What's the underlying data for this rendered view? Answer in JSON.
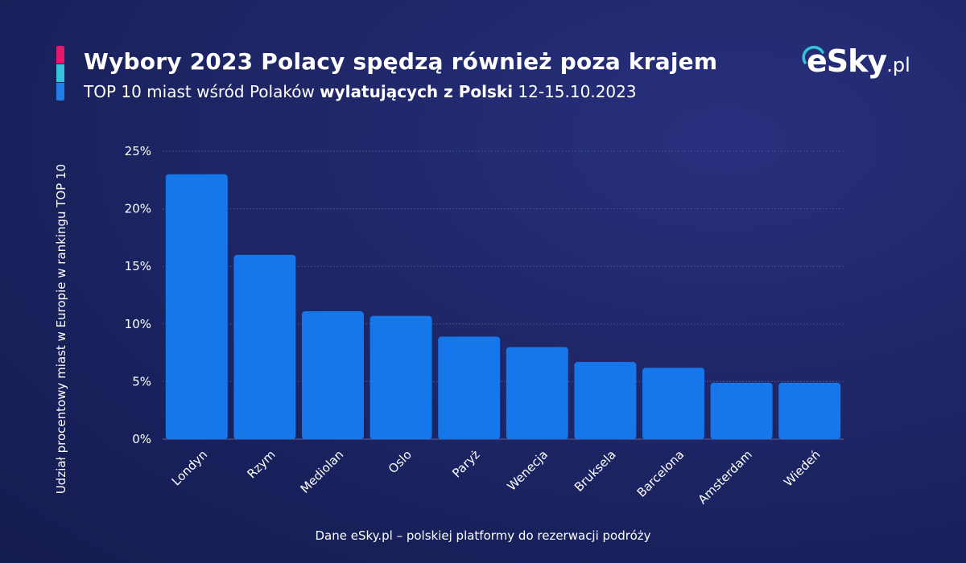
{
  "header": {
    "title": "Wybory 2023 Polacy spędzą również poza krajem",
    "subtitle_before": "TOP 10 miast wśród Polaków ",
    "subtitle_bold": "wylatujących z Polski",
    "subtitle_after": " 12-15.10.2023",
    "accent_colors": [
      "#e5186d",
      "#35c3dc",
      "#1f7ee8"
    ]
  },
  "logo": {
    "e": "e",
    "sky": "Sky",
    "domain": ".pl"
  },
  "footer": {
    "text": "Dane eSky.pl – polskiej platformy do rezerwacji podróży"
  },
  "colors": {
    "bar": "#1577ea",
    "grid": "#5b66a8"
  },
  "chart_data": {
    "type": "bar",
    "categories": [
      "Londyn",
      "Rzym",
      "Mediolan",
      "Oslo",
      "Paryż",
      "Wenecja",
      "Bruksela",
      "Barcelona",
      "Amsterdam",
      "Wiedeń"
    ],
    "values": [
      23.0,
      16.0,
      11.1,
      10.7,
      8.9,
      8.0,
      6.7,
      6.2,
      4.9,
      4.9
    ],
    "ylabel": "Udział procentowy miast w Europie w rankingu TOP 10",
    "xlabel": "",
    "ylim": [
      0,
      25
    ],
    "yticks": [
      "0%",
      "5%",
      "10%",
      "15%",
      "20%",
      "25%"
    ],
    "grid": true
  }
}
